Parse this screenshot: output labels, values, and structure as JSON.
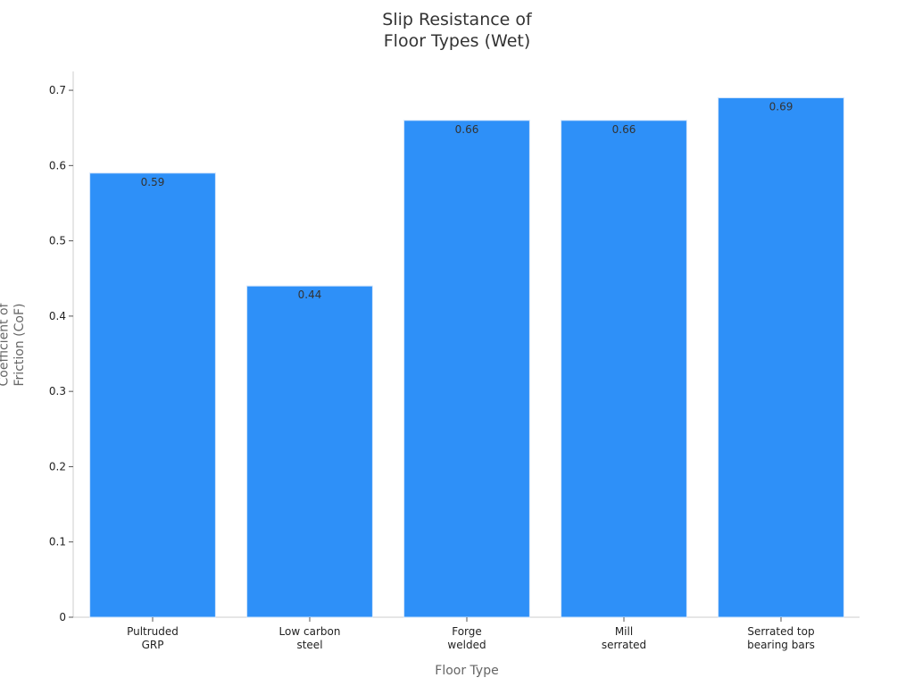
{
  "chart_data": {
    "type": "bar",
    "title": "Slip Resistance of\nFloor Types (Wet)",
    "x_label": "Floor Type",
    "y_label": "Coefficient of\nFriction (CoF)",
    "categories": [
      "Pultruded\nGRP",
      "Low carbon\nsteel",
      "Forge\nwelded",
      "Mill\nserrated",
      "Serrated top\nbearing bars"
    ],
    "values": [
      0.59,
      0.44,
      0.66,
      0.66,
      0.69
    ],
    "color": "#2e90f8",
    "ylim": [
      0,
      0.725
    ],
    "yticks": [
      0,
      0.1,
      0.2,
      0.3,
      0.4,
      0.5,
      0.6,
      0.7
    ]
  }
}
